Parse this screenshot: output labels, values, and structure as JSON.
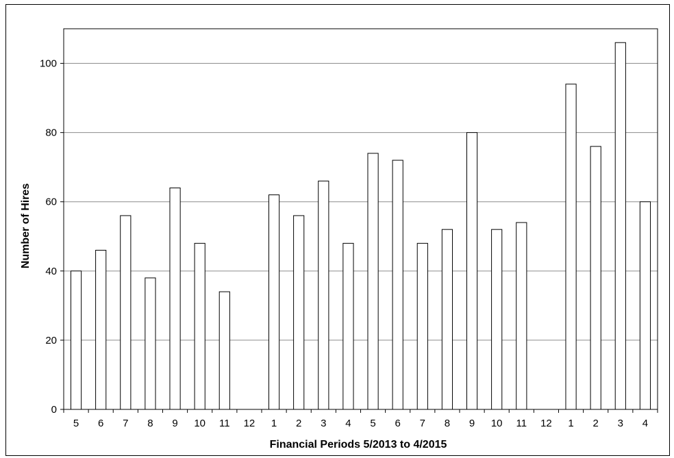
{
  "chart_data": {
    "type": "bar",
    "title": "",
    "xlabel": "Financial Periods 5/2013 to 4/2015",
    "ylabel": "Number of Hires",
    "ylim": [
      0,
      110
    ],
    "yticks": [
      0,
      20,
      40,
      60,
      80,
      100
    ],
    "grid": "horizontal",
    "categories": [
      "5",
      "6",
      "7",
      "8",
      "9",
      "10",
      "11",
      "12",
      "1",
      "2",
      "3",
      "4",
      "5",
      "6",
      "7",
      "8",
      "9",
      "10",
      "11",
      "12",
      "1",
      "2",
      "3",
      "4"
    ],
    "values": [
      40,
      46,
      56,
      38,
      64,
      48,
      34,
      0,
      62,
      56,
      66,
      48,
      74,
      72,
      48,
      52,
      80,
      52,
      54,
      0,
      94,
      76,
      106,
      60
    ],
    "colors": {
      "bar_fill": "#ffffff",
      "bar_stroke": "#000000",
      "grid": "#8c8c8c",
      "axis": "#000000"
    }
  }
}
